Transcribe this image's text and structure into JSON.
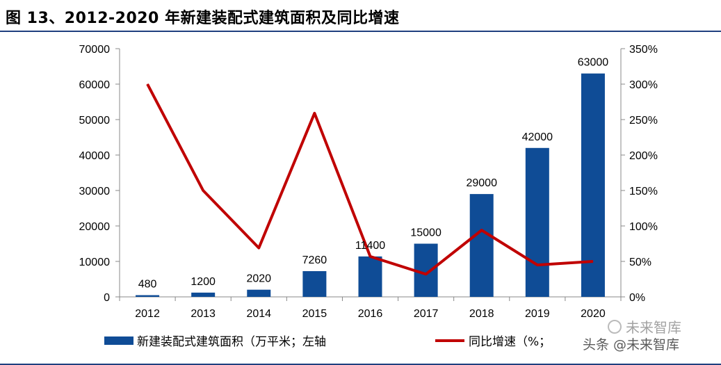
{
  "title": "图 13、2012-2020 年新建装配式建筑面积及同比增速",
  "chart_data": {
    "type": "bar",
    "categories": [
      "2012",
      "2013",
      "2014",
      "2015",
      "2016",
      "2017",
      "2018",
      "2019",
      "2020"
    ],
    "series": [
      {
        "name": "新建装配式建筑面积（万平米；左轴",
        "type": "bar",
        "axis": "left",
        "values": [
          480,
          1200,
          2020,
          7260,
          11400,
          15000,
          29000,
          42000,
          63000
        ],
        "color": "#0f4c96"
      },
      {
        "name": "同比增速（%；",
        "type": "line",
        "axis": "right",
        "values": [
          300,
          150,
          69,
          259,
          57,
          32,
          94,
          45,
          50
        ],
        "color": "#c00000"
      }
    ],
    "data_labels": [
      "480",
      "1200",
      "2020",
      "7260",
      "11400",
      "15000",
      "29000",
      "42000",
      "63000"
    ],
    "ylim_left": [
      0,
      70000
    ],
    "ylim_right": [
      0,
      350
    ],
    "yticks_left": [
      "0",
      "10000",
      "20000",
      "30000",
      "40000",
      "50000",
      "60000",
      "70000"
    ],
    "yticks_right": [
      "0%",
      "50%",
      "100%",
      "150%",
      "200%",
      "250%",
      "300%",
      "350%"
    ],
    "grid": false,
    "legend_position": "bottom"
  },
  "watermark": {
    "line1": "未来智库",
    "line2": "头条 @未来智库"
  }
}
